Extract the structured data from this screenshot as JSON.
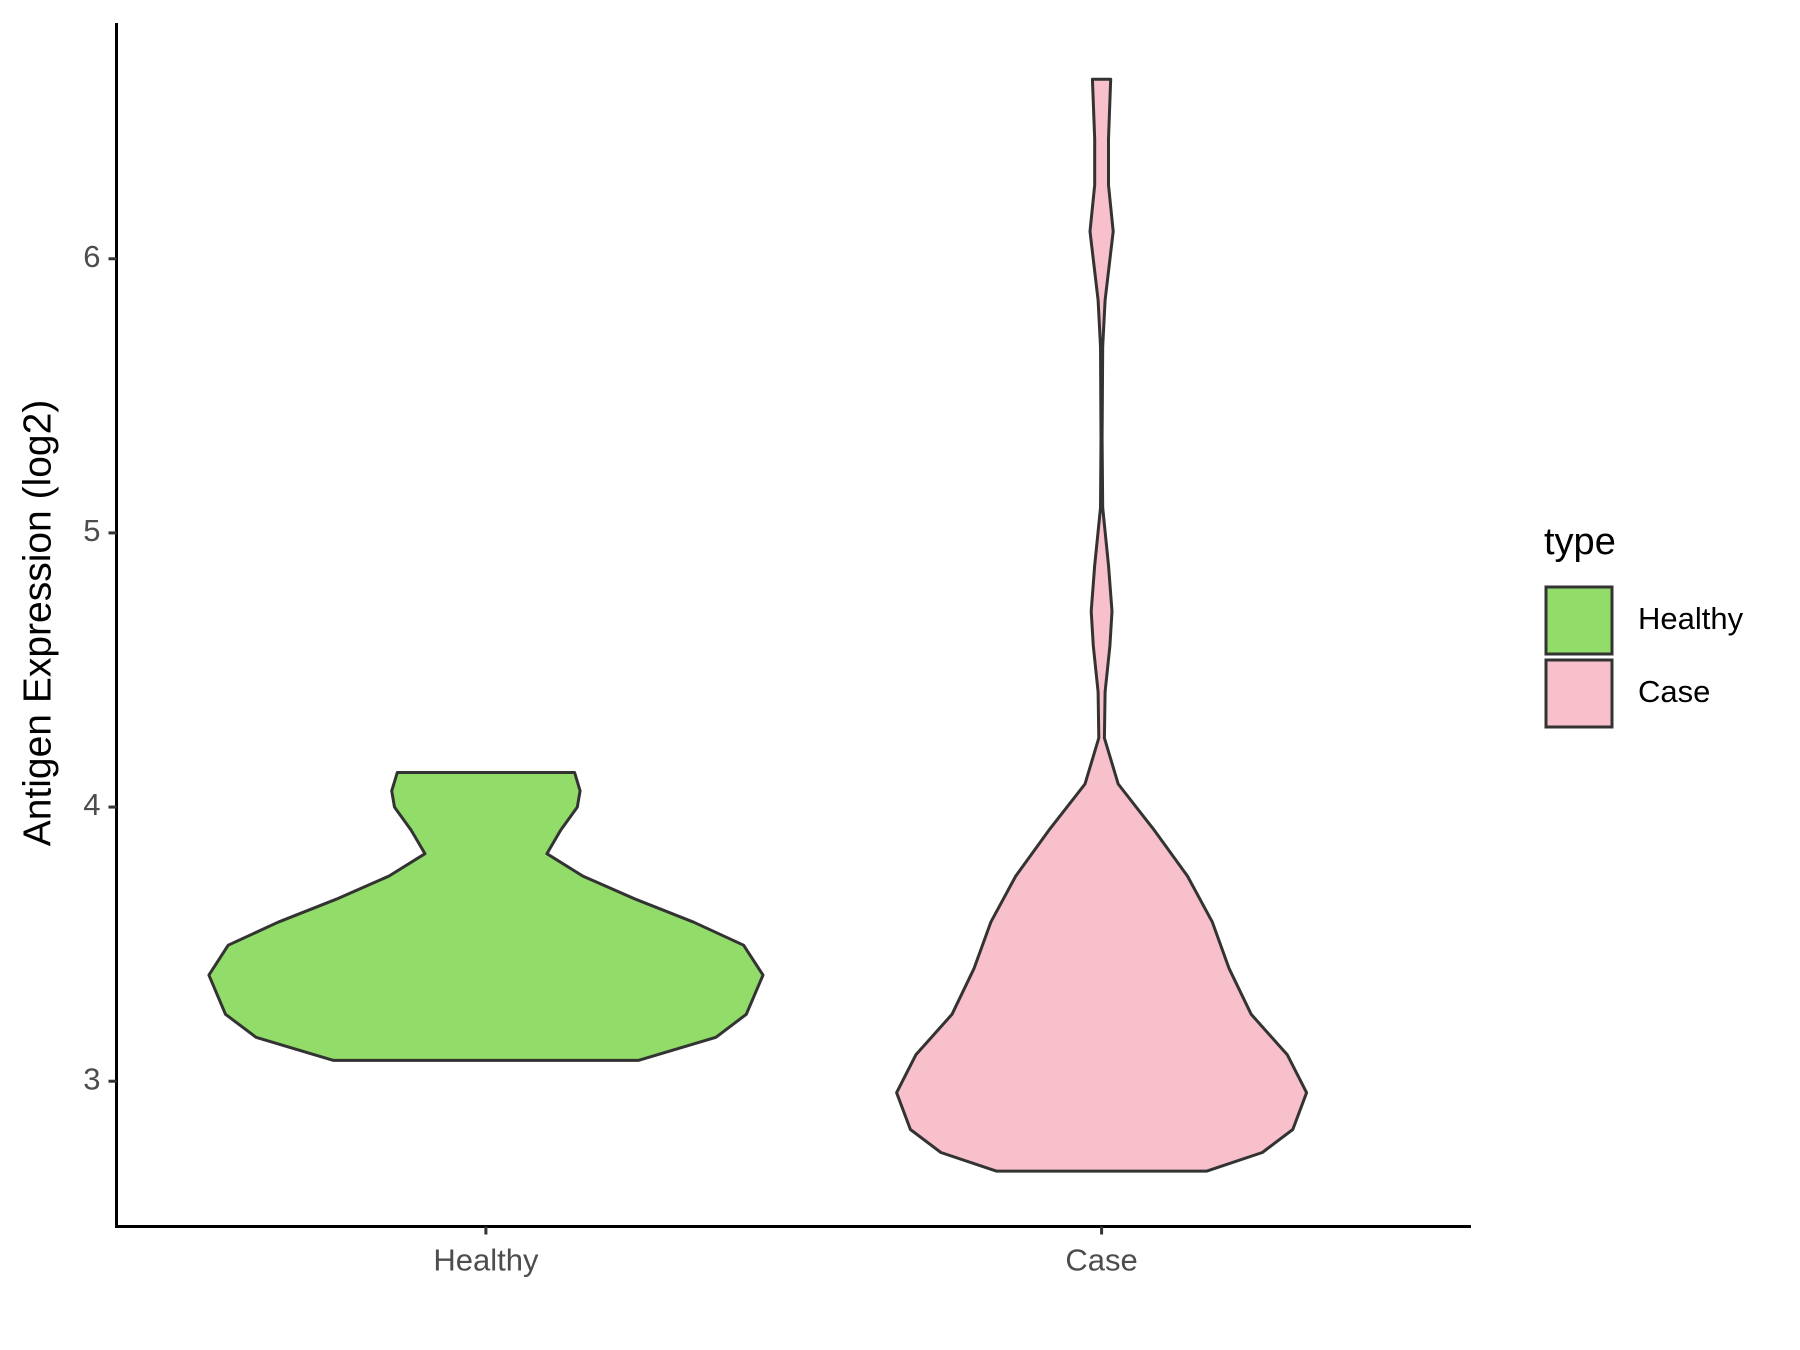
{
  "chart_data": {
    "type": "violin",
    "y_label": "Antigen Expression (log2)",
    "categories": [
      "Healthy",
      "Case"
    ],
    "legend_title": "type",
    "legend_position": "right",
    "ylim": [
      2.47,
      6.86
    ],
    "yticks": [
      3,
      4,
      5,
      6
    ],
    "series": [
      {
        "name": "Healthy",
        "color": "#92dc6a",
        "y": [
          3.076,
          3.16,
          3.244,
          3.387,
          3.496,
          3.58,
          3.664,
          3.748,
          3.83,
          3.916,
          4.0,
          4.059,
          4.126
        ],
        "density": [
          0.55,
          0.83,
          0.94,
          1.0,
          0.93,
          0.75,
          0.54,
          0.35,
          0.22,
          0.27,
          0.33,
          0.34,
          0.32
        ]
      },
      {
        "name": "Case",
        "color": "#f7c0cb",
        "y": [
          2.672,
          2.74,
          2.824,
          2.958,
          3.097,
          3.244,
          3.412,
          3.58,
          3.748,
          3.916,
          4.084,
          4.252,
          4.42,
          4.588,
          4.714,
          4.882,
          5.092,
          5.344,
          5.68,
          5.849,
          6.1,
          6.269,
          6.437,
          6.655
        ],
        "density": [
          0.38,
          0.58,
          0.69,
          0.74,
          0.67,
          0.54,
          0.46,
          0.4,
          0.31,
          0.19,
          0.06,
          0.01,
          0.0125,
          0.03,
          0.0375,
          0.025,
          0.004,
          0.002,
          0.004,
          0.0125,
          0.042,
          0.025,
          0.025,
          0.033
        ]
      }
    ]
  }
}
